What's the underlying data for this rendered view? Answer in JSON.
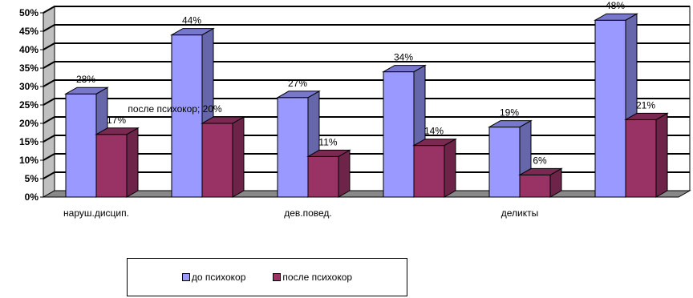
{
  "chart_data": {
    "type": "bar",
    "categories": [
      "наруш.дисцип.",
      "",
      "дев.повед.",
      "",
      "деликты",
      ""
    ],
    "series": [
      {
        "name": "до психокор",
        "values": [
          28,
          44,
          27,
          34,
          19,
          48
        ],
        "labels": [
          "28%",
          "44%",
          "27%",
          "34%",
          "19%",
          "48%"
        ]
      },
      {
        "name": "после психокор",
        "values": [
          17,
          20,
          11,
          14,
          6,
          21
        ],
        "labels": [
          "17%",
          "после психокор; 20%",
          "11%",
          "14%",
          "6%",
          "21%"
        ]
      }
    ],
    "y_ticks": [
      "0%",
      "5%",
      "10%",
      "15%",
      "20%",
      "25%",
      "30%",
      "35%",
      "40%",
      "45%",
      "50%"
    ],
    "ylim": [
      0,
      50
    ],
    "grid": true,
    "three_d": true,
    "legend_position": "bottom",
    "colors": {
      "series1_front": "#9999ff",
      "series1_side": "#6666aa",
      "series1_top": "#7777cc",
      "series2_front": "#993366",
      "series2_side": "#6e2449",
      "series2_top": "#7a2a52",
      "wall": "#c0c0c0",
      "floor": "#888888"
    }
  }
}
